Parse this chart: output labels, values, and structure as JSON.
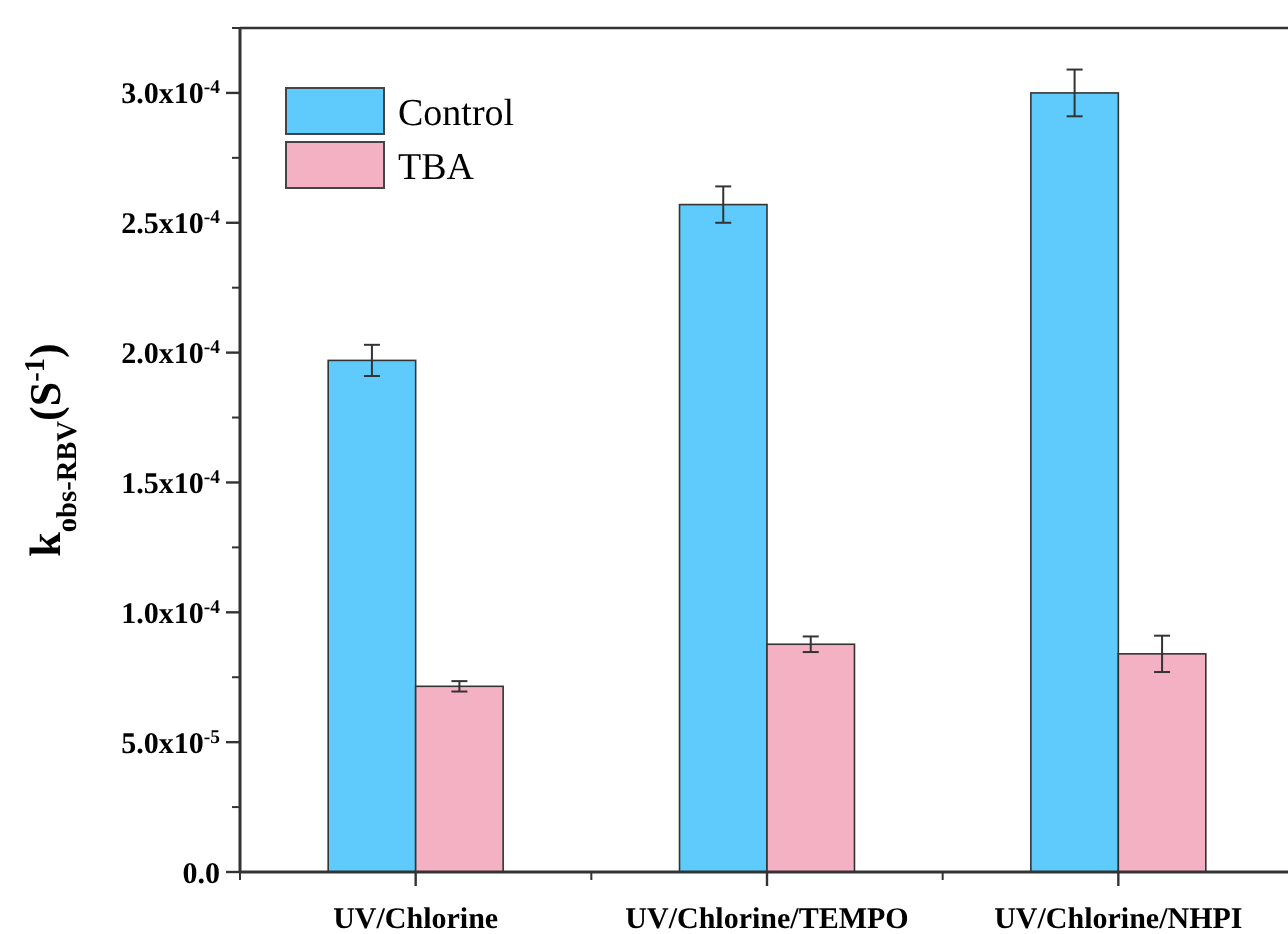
{
  "chart_data": {
    "type": "bar",
    "ylabel": "k$_{obs-RBV}$(S$^{-1}$)",
    "categories": [
      "UV/Chlorine",
      "UV/Chlorine/TEMPO",
      "UV/Chlorine/NHPI"
    ],
    "series": [
      {
        "name": "Control",
        "color": "#5fcbfc",
        "values": [
          0.000197,
          0.000257,
          0.0003
        ],
        "errors": [
          6e-06,
          7e-06,
          9e-06
        ]
      },
      {
        "name": "TBA",
        "color": "#f4b1c4",
        "values": [
          7.15e-05,
          8.77e-05,
          8.4e-05
        ],
        "errors": [
          2e-06,
          3e-06,
          7e-06
        ]
      }
    ],
    "ylim": [
      0,
      0.000325
    ],
    "yticks": [
      {
        "value": 0,
        "label": "0.0"
      },
      {
        "value": 5e-05,
        "label": "5.0x10$^{-5}$"
      },
      {
        "value": 0.0001,
        "label": "1.0x10$^{-4}$"
      },
      {
        "value": 0.00015,
        "label": "1.5x10$^{-4}$"
      },
      {
        "value": 0.0002,
        "label": "2.0x10$^{-4}$"
      },
      {
        "value": 0.00025,
        "label": "2.5x10$^{-4}$"
      },
      {
        "value": 0.0003,
        "label": "3.0x10$^{-4}$"
      }
    ],
    "legend": "top left",
    "grid": false
  }
}
